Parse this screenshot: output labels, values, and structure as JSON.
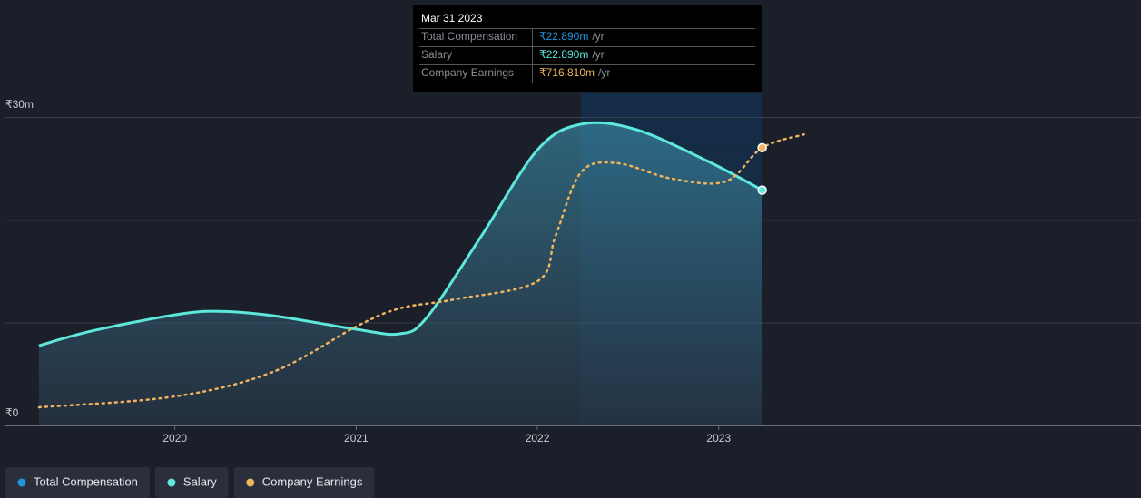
{
  "chart_data": {
    "type": "line",
    "xlim": [
      2019.06,
      2025.33
    ],
    "xticks": [
      2020,
      2021,
      2022,
      2023
    ],
    "ylim": [
      0,
      30
    ],
    "yticks": [
      {
        "value": 0,
        "label": "₹0"
      },
      {
        "value": 30,
        "label": "₹30m"
      }
    ],
    "ygrid": [
      10,
      20,
      30
    ],
    "y2lim": [
      0,
      796
    ],
    "series": [
      {
        "name": "Total Compensation",
        "color": "#2394df",
        "x": [
          2019.25,
          2019.54,
          2020.0,
          2020.24,
          2020.54,
          2021.0,
          2021.24,
          2021.39,
          2021.69,
          2022.0,
          2022.24,
          2022.54,
          2022.94,
          2023.24
        ],
        "values": [
          7.76,
          9.18,
          10.76,
          11.1,
          10.68,
          9.35,
          8.91,
          10.5,
          18.4,
          26.8,
          29.3,
          28.8,
          25.7,
          22.89
        ]
      },
      {
        "name": "Salary",
        "color": "#5ee8dc",
        "x": [
          2019.25,
          2019.54,
          2020.0,
          2020.24,
          2020.54,
          2021.0,
          2021.24,
          2021.39,
          2021.69,
          2022.0,
          2022.24,
          2022.54,
          2022.94,
          2023.24
        ],
        "values": [
          7.76,
          9.18,
          10.76,
          11.1,
          10.68,
          9.35,
          8.91,
          10.5,
          18.4,
          26.8,
          29.3,
          28.8,
          25.7,
          22.89
        ]
      },
      {
        "name": "Company Earnings",
        "color": "#f0b45d",
        "axis": "y2",
        "x": [
          2019.25,
          2020.0,
          2020.54,
          2021.0,
          2021.24,
          2021.54,
          2022.0,
          2022.1,
          2022.24,
          2022.44,
          2022.74,
          2023.04,
          2023.24,
          2023.47
        ],
        "values": [
          46.8,
          74.9,
          138,
          255,
          302,
          325,
          372,
          489,
          653,
          677,
          637,
          630,
          716.81,
          751
        ]
      }
    ],
    "tooltip": {
      "title": "Mar 31 2023",
      "rows": [
        {
          "label": "Total Compensation",
          "value": "₹22.890m",
          "unit": "/yr"
        },
        {
          "label": "Salary",
          "value": "₹22.890m",
          "unit": "/yr"
        },
        {
          "label": "Company Earnings",
          "value": "₹716.810m",
          "unit": "/yr"
        }
      ]
    }
  }
}
